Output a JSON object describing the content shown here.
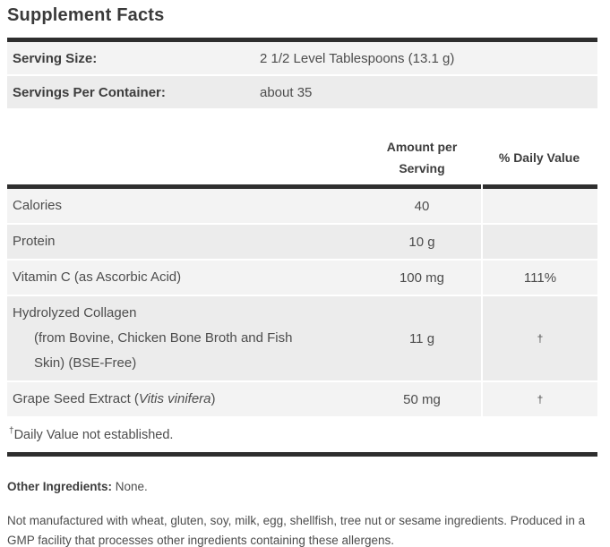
{
  "title": "Supplement Facts",
  "serving_info": {
    "rows": [
      {
        "label": "Serving Size:",
        "value": "2 1/2 Level Tablespoons (13.1 g)"
      },
      {
        "label": "Servings Per Container:",
        "value": "about 35"
      }
    ]
  },
  "table": {
    "headers": {
      "amount": "Amount per Serving",
      "daily_value": "% Daily Value"
    },
    "rows": [
      {
        "name_parts": [
          {
            "text": "Calories"
          }
        ],
        "amount": "40",
        "daily_value": ""
      },
      {
        "name_parts": [
          {
            "text": "Protein"
          }
        ],
        "amount": "10 g",
        "daily_value": ""
      },
      {
        "name_parts": [
          {
            "text": "Vitamin C (as Ascorbic Acid)"
          }
        ],
        "amount": "100 mg",
        "daily_value": "111%"
      },
      {
        "name_parts": [
          {
            "text": "Hydrolyzed Collagen"
          }
        ],
        "sub_lines": [
          "(from Bovine, Chicken Bone Broth and Fish",
          "Skin) (BSE-Free)"
        ],
        "amount": "11 g",
        "daily_value": "†"
      },
      {
        "name_parts": [
          {
            "text": "Grape Seed Extract ("
          },
          {
            "text": "Vitis vinifera",
            "italic": true
          },
          {
            "text": ")"
          }
        ],
        "amount": "50 mg",
        "daily_value": "†"
      }
    ],
    "footnote": {
      "dagger": "†",
      "text": "Daily Value not established."
    }
  },
  "other_ingredients": {
    "label": "Other Ingredients:",
    "value": " None."
  },
  "allergen_statement": "Not manufactured with wheat, gluten, soy, milk, egg, shellfish, tree nut or sesame ingredients. Produced in a GMP facility that processes other ingredients containing these allergens.",
  "colors": {
    "bar": "#2e2e2e",
    "stripe_light": "#f3f3f3",
    "stripe_dark": "#ececec",
    "text": "#4d4d4d",
    "label": "#3d3d3d",
    "title": "#3a3a3a"
  }
}
